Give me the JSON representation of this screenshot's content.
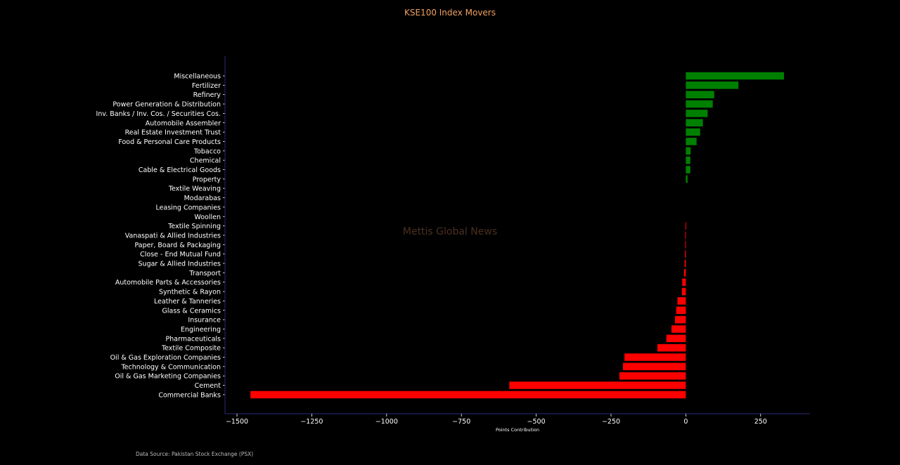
{
  "colors": {
    "background": "#000000",
    "positive": "#008000",
    "negative": "#ff0000",
    "title": "#f0a060",
    "axis": "#2a2a7a"
  },
  "watermark": "Mettis Global News",
  "source_note": "Data Source: Pakistan Stock Exchange (PSX)",
  "chart_data": {
    "type": "bar",
    "orientation": "horizontal",
    "title": "KSE100 Index Movers",
    "xlabel": "Points Contribution",
    "ylabel": "",
    "xlim": [
      -1540,
      415
    ],
    "xticks": [
      -1500,
      -1250,
      -1000,
      -750,
      -500,
      -250,
      0,
      250
    ],
    "xtick_labels": [
      "−1500",
      "−1250",
      "−1000",
      "−750",
      "−500",
      "−250",
      "0",
      "250"
    ],
    "grid": false,
    "categories": [
      "Miscellaneous",
      "Fertilizer",
      "Refinery",
      "Power Generation & Distribution",
      "Inv. Banks / Inv. Cos. / Securities Cos.",
      "Automobile Assembler",
      "Real Estate Investment Trust",
      "Food & Personal Care Products",
      "Tobacco",
      "Chemical",
      "Cable & Electrical Goods",
      "Property",
      "Textile Weaving",
      "Modarabas",
      "Leasing Companies",
      "Woollen",
      "Textile Spinning",
      "Vanaspati & Allied Industries",
      "Paper, Board & Packaging",
      "Close - End Mutual Fund",
      "Sugar & Allied Industries",
      "Transport",
      "Automobile Parts & Accessories",
      "Synthetic & Rayon",
      "Leather & Tanneries",
      "Glass & Ceramics",
      "Insurance",
      "Engineering",
      "Pharmaceuticals",
      "Textile Composite",
      "Oil & Gas Exploration Companies",
      "Technology & Communication",
      "Oil & Gas Marketing Companies",
      "Cement",
      "Commercial Banks"
    ],
    "values": [
      328,
      176,
      95,
      90,
      73,
      57,
      48,
      36,
      16,
      15,
      15,
      6,
      0,
      0,
      0,
      0,
      -1,
      -2,
      -2,
      -3,
      -4,
      -6,
      -12,
      -13,
      -28,
      -32,
      -36,
      -48,
      -65,
      -95,
      -205,
      -210,
      -222,
      -590,
      -1455
    ]
  }
}
